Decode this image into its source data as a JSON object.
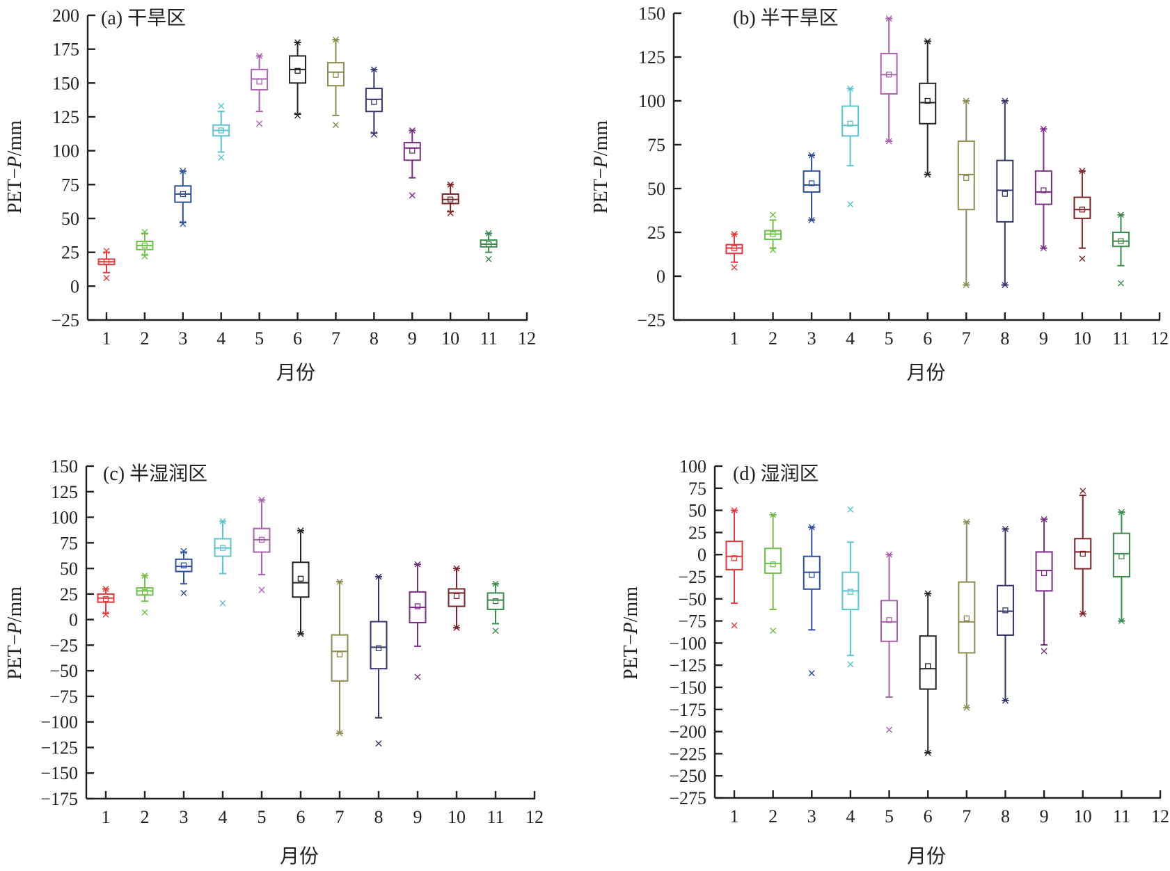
{
  "chart_data": [
    {
      "type": "box",
      "title": "(a) 干旱区",
      "xlabel": "月份",
      "ylabel": "PET−P/mm",
      "ylabel_parts": [
        "PET−",
        "P",
        "/mm"
      ],
      "xlim": [
        0.5,
        12
      ],
      "ylim": [
        -25,
        200
      ],
      "yticks": [
        200,
        175,
        150,
        125,
        100,
        75,
        50,
        25,
        0,
        -25
      ],
      "ytick_labels": [
        "200",
        "175",
        "150",
        "125",
        "100",
        "75",
        "50",
        "25",
        "0",
        "−25"
      ],
      "xticks": [
        1,
        2,
        3,
        4,
        5,
        6,
        7,
        8,
        9,
        10,
        11,
        12
      ],
      "xtick_labels": [
        "1",
        "2",
        "3",
        "4",
        "5",
        "6",
        "7",
        "8",
        "9",
        "10",
        "11",
        "12"
      ],
      "ytick_side": "outside",
      "grid": false,
      "series": [
        {
          "month": 1,
          "color": "#e03a3e",
          "whisker_low": 10,
          "q1": 16,
          "median": 18,
          "q3": 20,
          "whisker_high": 25,
          "mean": 18,
          "extremes": [
            26,
            6
          ]
        },
        {
          "month": 2,
          "color": "#6fbf4a",
          "whisker_low": 23,
          "q1": 27,
          "median": 30,
          "q3": 33,
          "whisker_high": 39,
          "mean": 30,
          "extremes": [
            40,
            22
          ]
        },
        {
          "month": 3,
          "color": "#2e4f9e",
          "whisker_low": 47,
          "q1": 62,
          "median": 68,
          "q3": 74,
          "whisker_high": 85,
          "mean": 68,
          "extremes": [
            85,
            46
          ]
        },
        {
          "month": 4,
          "color": "#5bc4cc",
          "whisker_low": 99,
          "q1": 111,
          "median": 115,
          "q3": 119,
          "whisker_high": 129,
          "mean": 115,
          "extremes": [
            133,
            95
          ]
        },
        {
          "month": 5,
          "color": "#a862ae",
          "whisker_low": 129,
          "q1": 145,
          "median": 153,
          "q3": 160,
          "whisker_high": 170,
          "mean": 151,
          "extremes": [
            170,
            120
          ]
        },
        {
          "month": 6,
          "color": "#222222",
          "whisker_low": 127,
          "q1": 150,
          "median": 160,
          "q3": 170,
          "whisker_high": 180,
          "mean": 159,
          "extremes": [
            180,
            126
          ]
        },
        {
          "month": 7,
          "color": "#8c8c52",
          "whisker_low": 126,
          "q1": 148,
          "median": 158,
          "q3": 165,
          "whisker_high": 182,
          "mean": 156,
          "extremes": [
            182,
            119
          ]
        },
        {
          "month": 8,
          "color": "#35356b",
          "whisker_low": 113,
          "q1": 129,
          "median": 138,
          "q3": 146,
          "whisker_high": 160,
          "mean": 136,
          "extremes": [
            160,
            112
          ]
        },
        {
          "month": 9,
          "color": "#7a2d85",
          "whisker_low": 80,
          "q1": 93,
          "median": 102,
          "q3": 106,
          "whisker_high": 115,
          "mean": 100,
          "extremes": [
            115,
            67
          ]
        },
        {
          "month": 10,
          "color": "#7a2228",
          "whisker_low": 55,
          "q1": 61,
          "median": 64,
          "q3": 68,
          "whisker_high": 75,
          "mean": 64,
          "extremes": [
            75,
            54
          ]
        },
        {
          "month": 11,
          "color": "#3d8a4d",
          "whisker_low": 25,
          "q1": 29,
          "median": 31,
          "q3": 34,
          "whisker_high": 39,
          "mean": 31,
          "extremes": [
            39,
            20
          ]
        }
      ]
    },
    {
      "type": "box",
      "title": "(b) 半干旱区",
      "xlabel": "月份",
      "ylabel": "PET−P/mm",
      "ylabel_parts": [
        "PET−",
        "P",
        "/mm"
      ],
      "xlim": [
        0.5,
        12
      ],
      "ylim": [
        -25,
        150
      ],
      "yticks": [
        150,
        125,
        100,
        75,
        50,
        25,
        0,
        -25
      ],
      "ytick_labels": [
        "150",
        "125",
        "100",
        "75",
        "50",
        "25",
        "0",
        "−25"
      ],
      "xticks": [
        1,
        2,
        3,
        4,
        5,
        6,
        7,
        8,
        9,
        10,
        11,
        12
      ],
      "xtick_labels": [
        "1",
        "2",
        "3",
        "4",
        "5",
        "6",
        "7",
        "8",
        "9",
        "10",
        "11",
        "12"
      ],
      "ytick_side": "outside",
      "grid": false,
      "series": [
        {
          "month": 1,
          "color": "#e03a3e",
          "whisker_low": 8,
          "q1": 13,
          "median": 16,
          "q3": 18,
          "whisker_high": 24,
          "mean": 16,
          "extremes": [
            24,
            5
          ]
        },
        {
          "month": 2,
          "color": "#6fbf4a",
          "whisker_low": 16,
          "q1": 21,
          "median": 24,
          "q3": 26,
          "whisker_high": 32,
          "mean": 24,
          "extremes": [
            35,
            15
          ]
        },
        {
          "month": 3,
          "color": "#2e4f9e",
          "whisker_low": 32,
          "q1": 48,
          "median": 52,
          "q3": 60,
          "whisker_high": 69,
          "mean": 53,
          "extremes": [
            69,
            32
          ]
        },
        {
          "month": 4,
          "color": "#5bc4cc",
          "whisker_low": 63,
          "q1": 80,
          "median": 86,
          "q3": 97,
          "whisker_high": 107,
          "mean": 87,
          "extremes": [
            107,
            41
          ]
        },
        {
          "month": 5,
          "color": "#a862ae",
          "whisker_low": 77,
          "q1": 104,
          "median": 115,
          "q3": 127,
          "whisker_high": 147,
          "mean": 115,
          "extremes": [
            147,
            77
          ]
        },
        {
          "month": 6,
          "color": "#222222",
          "whisker_low": 58,
          "q1": 87,
          "median": 99,
          "q3": 110,
          "whisker_high": 134,
          "mean": 100,
          "extremes": [
            134,
            58
          ]
        },
        {
          "month": 7,
          "color": "#8c8c52",
          "whisker_low": -5,
          "q1": 38,
          "median": 58,
          "q3": 77,
          "whisker_high": 100,
          "mean": 56,
          "extremes": [
            100,
            -5
          ]
        },
        {
          "month": 8,
          "color": "#35356b",
          "whisker_low": -5,
          "q1": 31,
          "median": 49,
          "q3": 66,
          "whisker_high": 100,
          "mean": 47,
          "extremes": [
            100,
            -5
          ]
        },
        {
          "month": 9,
          "color": "#7a2d85",
          "whisker_low": 16,
          "q1": 41,
          "median": 48,
          "q3": 60,
          "whisker_high": 84,
          "mean": 49,
          "extremes": [
            84,
            16
          ]
        },
        {
          "month": 10,
          "color": "#7a2228",
          "whisker_low": 16,
          "q1": 33,
          "median": 38,
          "q3": 45,
          "whisker_high": 60,
          "mean": 38,
          "extremes": [
            60,
            10
          ]
        },
        {
          "month": 11,
          "color": "#3d8a4d",
          "whisker_low": 6,
          "q1": 17,
          "median": 20,
          "q3": 25,
          "whisker_high": 35,
          "mean": 20,
          "extremes": [
            35,
            -4
          ]
        }
      ]
    },
    {
      "type": "box",
      "title": "(c) 半湿润区",
      "xlabel": "月份",
      "ylabel": "PET−P/mm",
      "ylabel_parts": [
        "PET−",
        "P",
        "/mm"
      ],
      "xlim": [
        0.5,
        12
      ],
      "ylim": [
        -175,
        150
      ],
      "yticks": [
        150,
        125,
        100,
        75,
        50,
        25,
        0,
        -25,
        -50,
        -75,
        -100,
        -125,
        -150,
        -175
      ],
      "ytick_labels": [
        "150",
        "125",
        "100",
        "75",
        "50",
        "25",
        "0",
        "−25",
        "−50",
        "−75",
        "−100",
        "−125",
        "−150",
        "−175"
      ],
      "xticks": [
        1,
        2,
        3,
        4,
        5,
        6,
        7,
        8,
        9,
        10,
        11,
        12
      ],
      "xtick_labels": [
        "1",
        "2",
        "3",
        "4",
        "5",
        "6",
        "7",
        "8",
        "9",
        "10",
        "11",
        "12"
      ],
      "ytick_side": "inside",
      "grid": false,
      "series": [
        {
          "month": 1,
          "color": "#e03a3e",
          "whisker_low": 6,
          "q1": 17,
          "median": 21,
          "q3": 25,
          "whisker_high": 30,
          "mean": 20,
          "extremes": [
            30,
            5
          ]
        },
        {
          "month": 2,
          "color": "#6fbf4a",
          "whisker_low": 18,
          "q1": 24,
          "median": 28,
          "q3": 31,
          "whisker_high": 43,
          "mean": 27,
          "extremes": [
            43,
            7
          ]
        },
        {
          "month": 3,
          "color": "#2e4f9e",
          "whisker_low": 35,
          "q1": 47,
          "median": 52,
          "q3": 59,
          "whisker_high": 66,
          "mean": 53,
          "extremes": [
            67,
            26
          ]
        },
        {
          "month": 4,
          "color": "#5bc4cc",
          "whisker_low": 45,
          "q1": 62,
          "median": 70,
          "q3": 79,
          "whisker_high": 96,
          "mean": 70,
          "extremes": [
            96,
            16
          ]
        },
        {
          "month": 5,
          "color": "#a862ae",
          "whisker_low": 44,
          "q1": 66,
          "median": 78,
          "q3": 89,
          "whisker_high": 117,
          "mean": 78,
          "extremes": [
            117,
            29
          ]
        },
        {
          "month": 6,
          "color": "#222222",
          "whisker_low": -14,
          "q1": 22,
          "median": 36,
          "q3": 56,
          "whisker_high": 87,
          "mean": 40,
          "extremes": [
            87,
            -14
          ]
        },
        {
          "month": 7,
          "color": "#8c8c52",
          "whisker_low": -111,
          "q1": -60,
          "median": -31,
          "q3": -15,
          "whisker_high": 37,
          "mean": -34,
          "extremes": [
            37,
            -111
          ]
        },
        {
          "month": 8,
          "color": "#35356b",
          "whisker_low": -96,
          "q1": -48,
          "median": -27,
          "q3": -2,
          "whisker_high": 42,
          "mean": -28,
          "extremes": [
            42,
            -121
          ]
        },
        {
          "month": 9,
          "color": "#7a2d85",
          "whisker_low": -26,
          "q1": -3,
          "median": 12,
          "q3": 27,
          "whisker_high": 54,
          "mean": 13,
          "extremes": [
            54,
            -56
          ]
        },
        {
          "month": 10,
          "color": "#7a2228",
          "whisker_low": -8,
          "q1": 13,
          "median": 26,
          "q3": 30,
          "whisker_high": 50,
          "mean": 23,
          "extremes": [
            50,
            -8
          ]
        },
        {
          "month": 11,
          "color": "#3d8a4d",
          "whisker_low": -4,
          "q1": 10,
          "median": 19,
          "q3": 26,
          "whisker_high": 35,
          "mean": 18,
          "extremes": [
            35,
            -11
          ]
        }
      ]
    },
    {
      "type": "box",
      "title": "(d) 湿润区",
      "xlabel": "月份",
      "ylabel": "PET−P/mm",
      "ylabel_parts": [
        "PET−",
        "P",
        "/mm"
      ],
      "xlim": [
        0.5,
        12
      ],
      "ylim": [
        -275,
        100
      ],
      "yticks": [
        100,
        75,
        50,
        25,
        0,
        -25,
        -50,
        -75,
        -100,
        -125,
        -150,
        -175,
        -200,
        -225,
        -250,
        -275
      ],
      "ytick_labels": [
        "100",
        "75",
        "50",
        "25",
        "0",
        "−25",
        "−50",
        "−75",
        "−100",
        "−125",
        "−150",
        "−175",
        "−200",
        "−225",
        "−250",
        "−275"
      ],
      "xticks": [
        1,
        2,
        3,
        4,
        5,
        6,
        7,
        8,
        9,
        10,
        11,
        12
      ],
      "xtick_labels": [
        "1",
        "2",
        "3",
        "4",
        "5",
        "6",
        "7",
        "8",
        "9",
        "10",
        "11",
        "12"
      ],
      "ytick_side": "inside",
      "grid": false,
      "series": [
        {
          "month": 1,
          "color": "#e03a3e",
          "whisker_low": -55,
          "q1": -17,
          "median": -2,
          "q3": 15,
          "whisker_high": 50,
          "mean": -4,
          "extremes": [
            50,
            -80
          ]
        },
        {
          "month": 2,
          "color": "#6fbf4a",
          "whisker_low": -62,
          "q1": -21,
          "median": -10,
          "q3": 7,
          "whisker_high": 45,
          "mean": -11,
          "extremes": [
            45,
            -86
          ]
        },
        {
          "month": 3,
          "color": "#2e4f9e",
          "whisker_low": -85,
          "q1": -39,
          "median": -20,
          "q3": -2,
          "whisker_high": 31,
          "mean": -23,
          "extremes": [
            31,
            -134
          ]
        },
        {
          "month": 4,
          "color": "#5bc4cc",
          "whisker_low": -114,
          "q1": -62,
          "median": -41,
          "q3": -20,
          "whisker_high": 14,
          "mean": -42,
          "extremes": [
            51,
            -124
          ]
        },
        {
          "month": 5,
          "color": "#a862ae",
          "whisker_low": -161,
          "q1": -98,
          "median": -76,
          "q3": -52,
          "whisker_high": 0,
          "mean": -74,
          "extremes": [
            0,
            -198
          ]
        },
        {
          "month": 6,
          "color": "#222222",
          "whisker_low": -224,
          "q1": -152,
          "median": -129,
          "q3": -92,
          "whisker_high": -44,
          "mean": -126,
          "extremes": [
            -44,
            -224
          ]
        },
        {
          "month": 7,
          "color": "#8c8c52",
          "whisker_low": -173,
          "q1": -111,
          "median": -76,
          "q3": -31,
          "whisker_high": 37,
          "mean": -72,
          "extremes": [
            37,
            -173
          ]
        },
        {
          "month": 8,
          "color": "#35356b",
          "whisker_low": -165,
          "q1": -91,
          "median": -64,
          "q3": -35,
          "whisker_high": 29,
          "mean": -63,
          "extremes": [
            29,
            -165
          ]
        },
        {
          "month": 9,
          "color": "#7a2d85",
          "whisker_low": -102,
          "q1": -41,
          "median": -18,
          "q3": 3,
          "whisker_high": 40,
          "mean": -21,
          "extremes": [
            40,
            -109
          ]
        },
        {
          "month": 10,
          "color": "#7a2228",
          "whisker_low": -67,
          "q1": -16,
          "median": 3,
          "q3": 18,
          "whisker_high": 67,
          "mean": 1,
          "extremes": [
            72,
            -67
          ]
        },
        {
          "month": 11,
          "color": "#3d8a4d",
          "whisker_low": -75,
          "q1": -25,
          "median": 1,
          "q3": 24,
          "whisker_high": 48,
          "mean": -2,
          "extremes": [
            48,
            -75
          ]
        }
      ]
    }
  ]
}
